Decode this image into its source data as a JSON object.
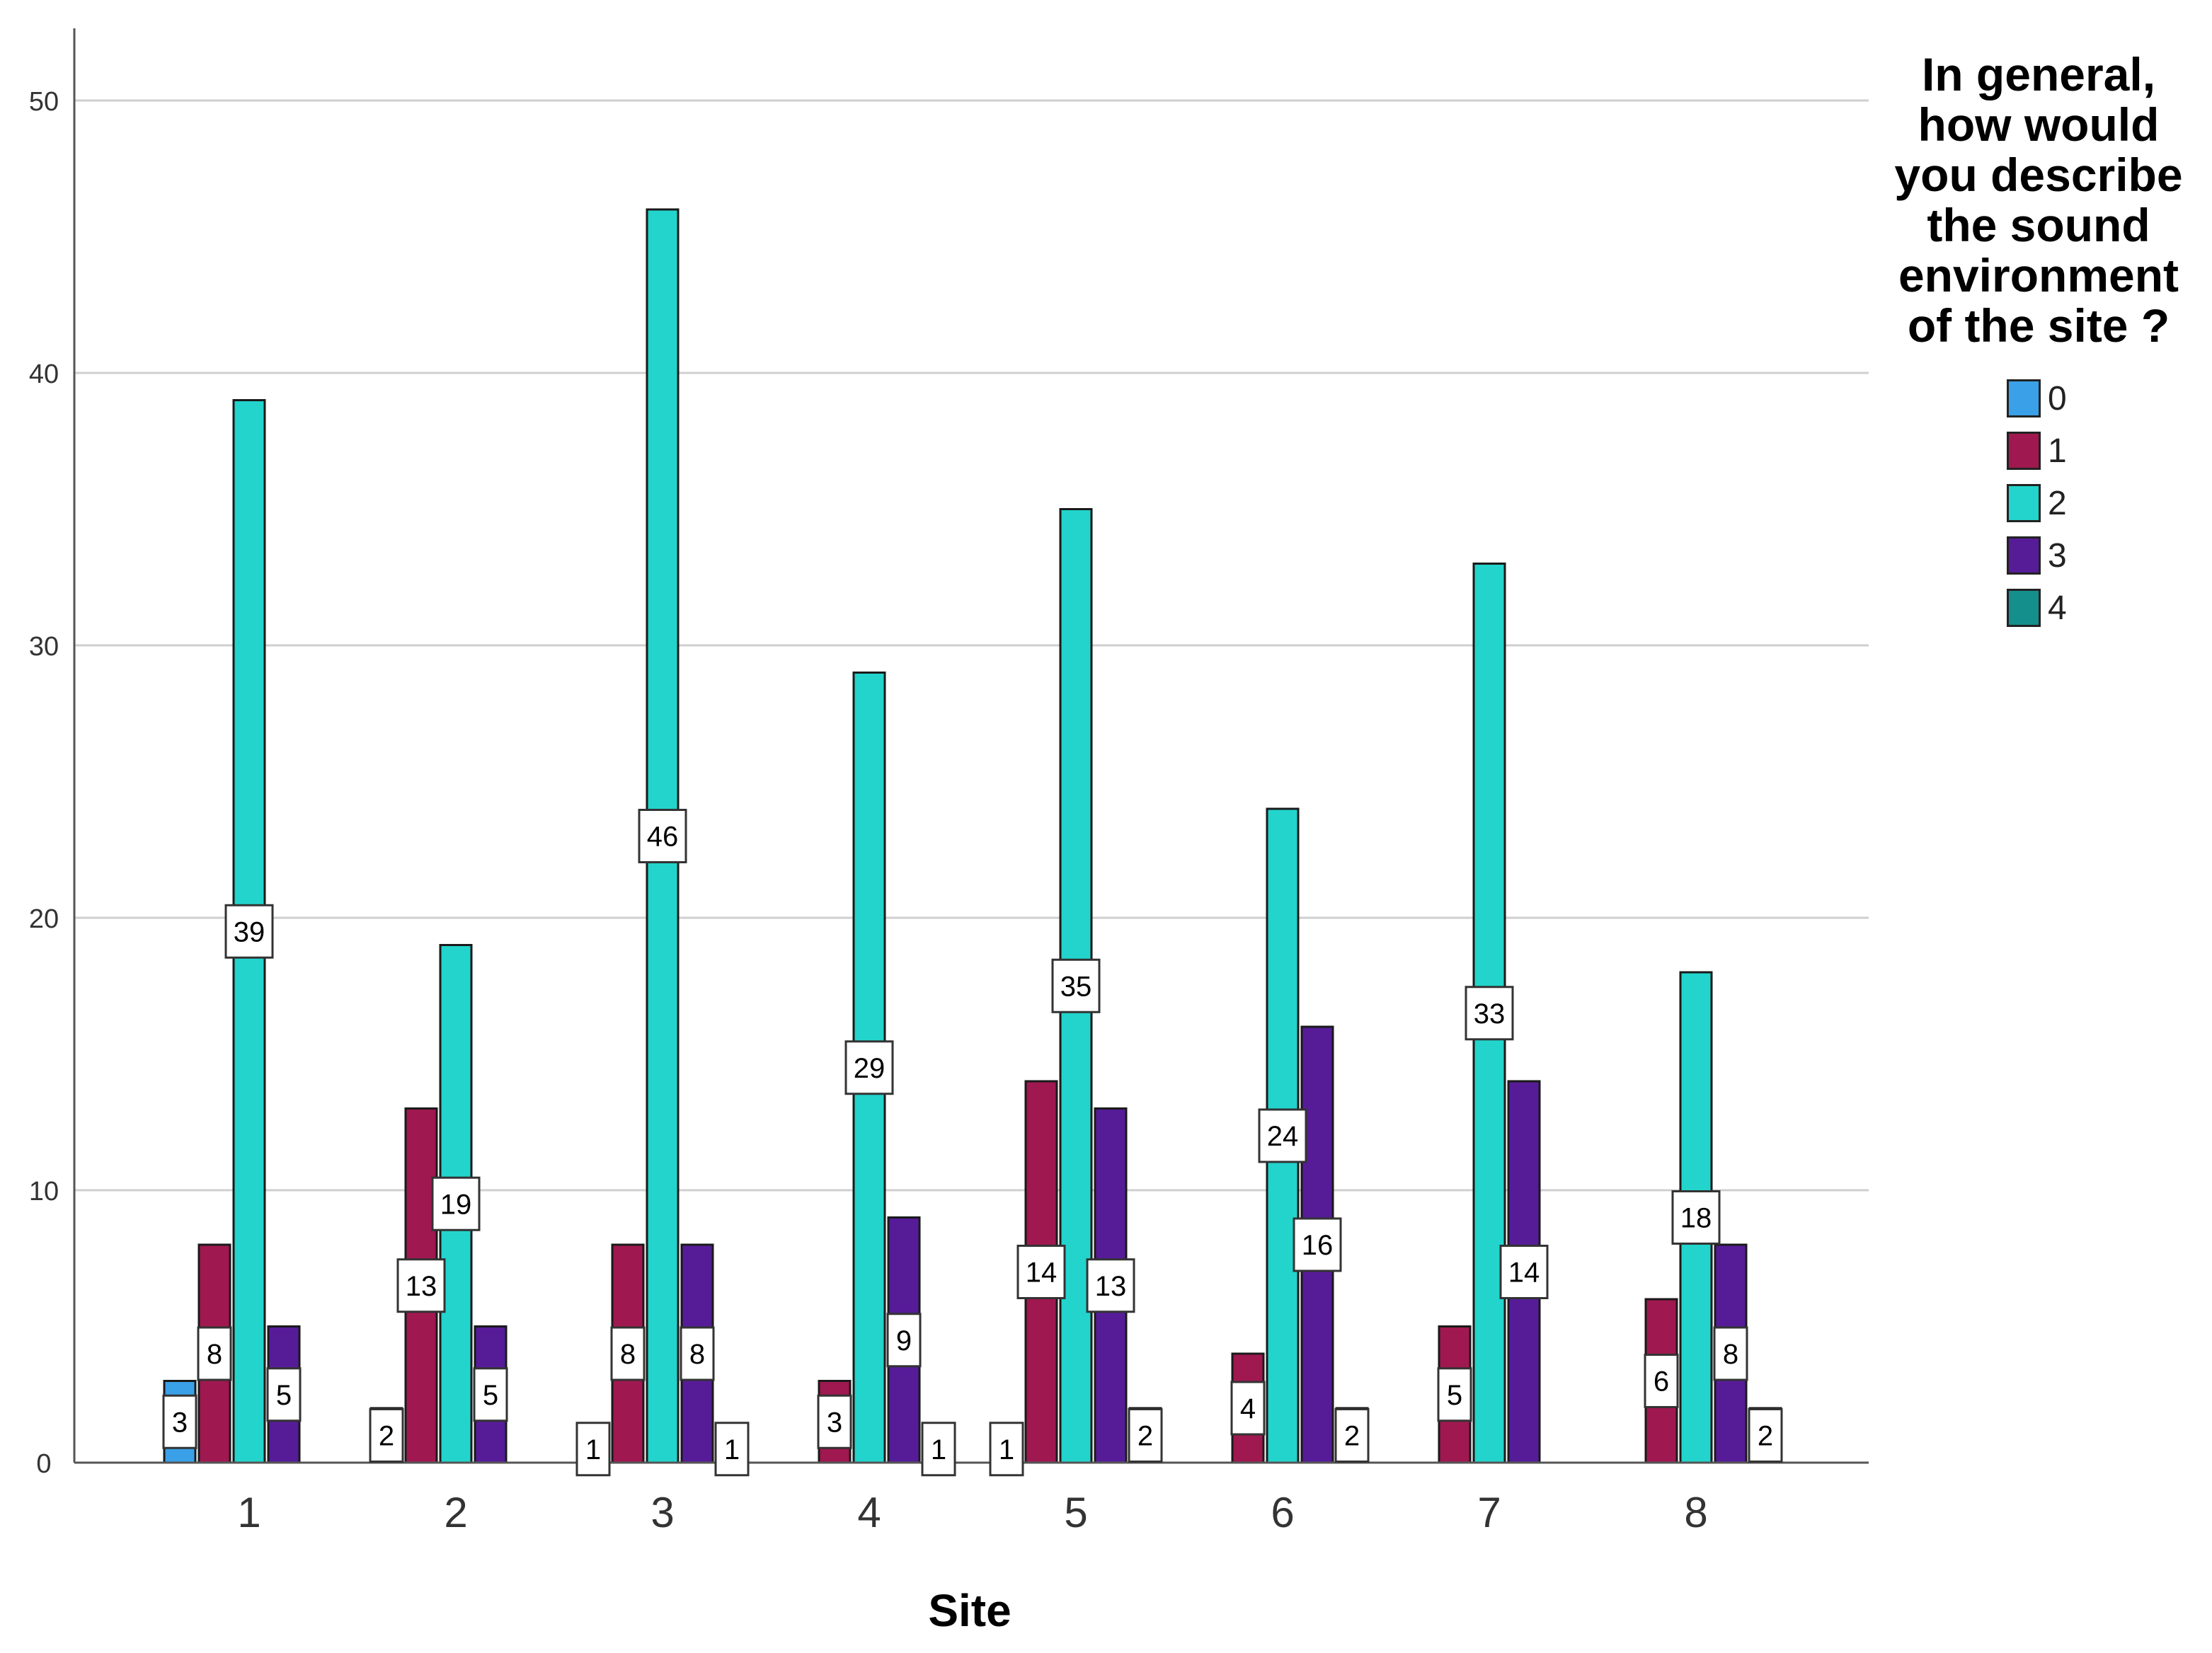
{
  "chart_data": {
    "type": "bar",
    "title": "",
    "xlabel": "Site",
    "ylabel": "",
    "ylim": [
      0,
      53
    ],
    "yticks": [
      0,
      10,
      20,
      30,
      40,
      50
    ],
    "grid": true,
    "legend_title": "In general, how would you describe the sound environment of the site ?",
    "legend_title_lines": [
      "In general,",
      "how would",
      "you describe",
      "the sound",
      "environment",
      "of the site ?"
    ],
    "legend_position": "top-right",
    "categories": [
      "1",
      "2",
      "3",
      "4",
      "5",
      "6",
      "7",
      "8"
    ],
    "series": [
      {
        "name": "0",
        "color": "#3aa0e8",
        "values": [
          3,
          2,
          1,
          0,
          1,
          0,
          0,
          0
        ]
      },
      {
        "name": "1",
        "color": "#a01850",
        "values": [
          8,
          13,
          8,
          3,
          14,
          4,
          5,
          6
        ]
      },
      {
        "name": "2",
        "color": "#22d4cc",
        "values": [
          39,
          19,
          46,
          29,
          35,
          24,
          33,
          18
        ]
      },
      {
        "name": "3",
        "color": "#561c98",
        "values": [
          5,
          5,
          8,
          9,
          13,
          16,
          14,
          8
        ]
      },
      {
        "name": "4",
        "color": "#158f8c",
        "values": [
          0,
          0,
          1,
          1,
          2,
          2,
          0,
          2
        ]
      }
    ]
  }
}
